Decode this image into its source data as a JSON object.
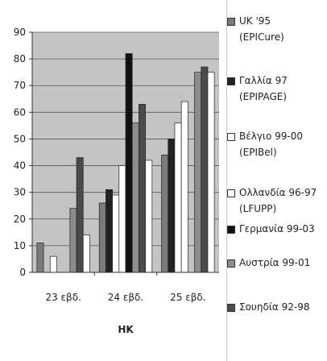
{
  "chart_data": {
    "type": "bar",
    "title": "",
    "xlabel": "HK",
    "ylabel": "",
    "ylim": [
      0,
      90
    ],
    "yticks": [
      0,
      10,
      20,
      30,
      40,
      50,
      60,
      70,
      80,
      90
    ],
    "grid": true,
    "legend_position": "right",
    "categories": [
      "23 εβδ.",
      "24 εβδ.",
      "25 εβδ."
    ],
    "series": [
      {
        "name": "UK '95 (EPICure)",
        "color": "#7a7a7a",
        "values": [
          11,
          26,
          44
        ]
      },
      {
        "name": "Γαλλία 97 (EPIPAGE)",
        "color": "#222222",
        "values": [
          0,
          31,
          50
        ]
      },
      {
        "name": "Βέλγιο 99-00 (EPIBel)",
        "color": "#ffffff",
        "values": [
          6,
          29,
          56
        ]
      },
      {
        "name": "Ολλανδία 96-97 (LFUPP)",
        "color": "#ffffff",
        "values": [
          0,
          40,
          64
        ]
      },
      {
        "name": "Γερμανία 99-03",
        "color": "#111111",
        "values": [
          0,
          82,
          0
        ]
      },
      {
        "name": "Αυστρία 99-01",
        "color": "#8c8c8c",
        "values": [
          24,
          56,
          75
        ]
      },
      {
        "name": "Σουηδία 92-98",
        "color": "#4a4a4a",
        "values": [
          43,
          63,
          77
        ]
      }
    ],
    "extra_bar_values": [
      14,
      42,
      75
    ]
  }
}
